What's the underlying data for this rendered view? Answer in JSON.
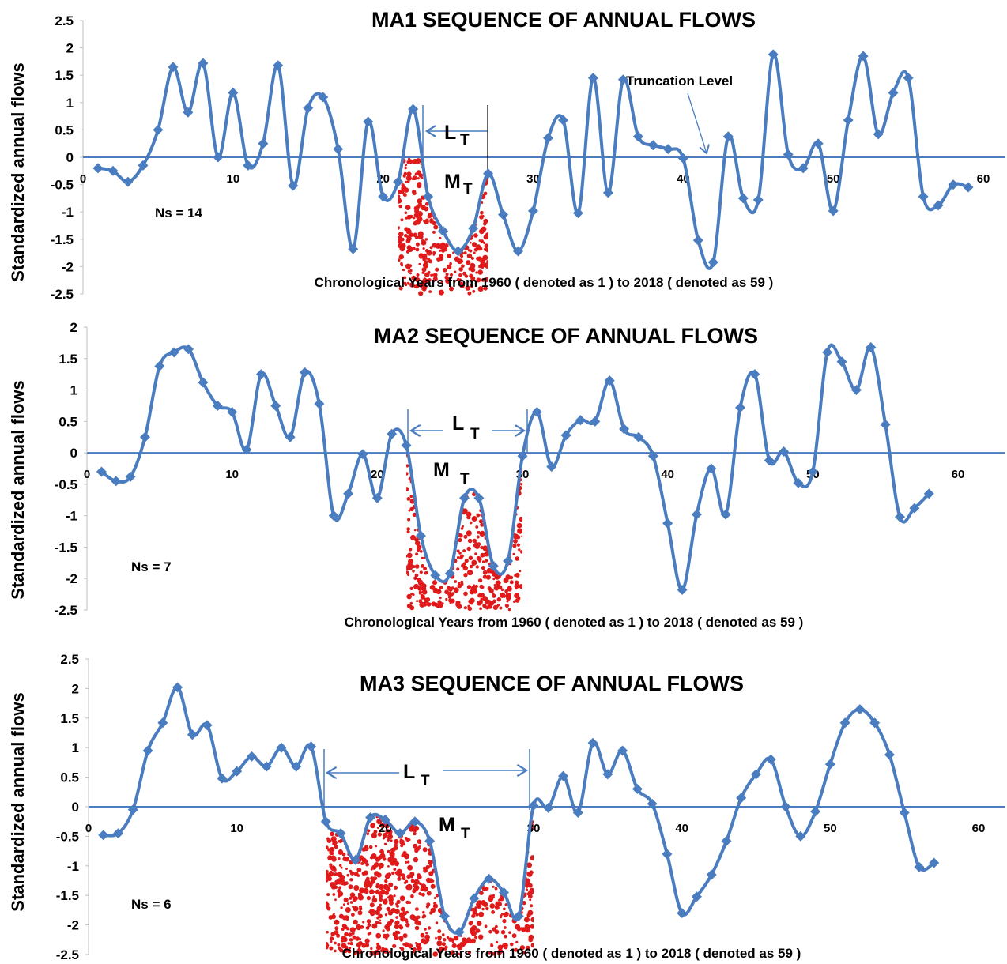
{
  "colors": {
    "line": "#4a7cc0",
    "axis": "#4a7cc0",
    "fill": "#e01a1a"
  },
  "chart_data": [
    {
      "type": "line",
      "title": "MA1  SEQUENCE  OF ANNUAL FLOWS",
      "ylabel": "Standardized annual flows",
      "xlabel": "Chronological Years from 1960 ( denoted as 1 ) to  2018 ( denoted as 59 )",
      "ylim": [
        -2.5,
        2.5
      ],
      "yticks": [
        "2.5",
        "2",
        "1.5",
        "1",
        "0.5",
        "0",
        "-0.5",
        "-1",
        "-1.5",
        "-2",
        "-2.5"
      ],
      "xlim": [
        0,
        62
      ],
      "xticks": [
        "0",
        "10",
        "20",
        "30",
        "40",
        "50",
        "60"
      ],
      "annotations": {
        "ns": "Ns = 14",
        "lt": "L",
        "mt": "M",
        "sub": "T",
        "truncation": "Truncation  Level"
      },
      "drought_years": [
        21,
        27
      ],
      "grid": false,
      "series": [
        {
          "x": [
            1,
            2,
            3,
            4,
            5,
            6,
            7,
            8,
            9,
            10,
            11,
            12,
            13,
            14,
            15,
            16,
            17,
            18,
            19,
            20,
            21,
            22,
            23,
            24,
            25,
            26,
            27,
            28,
            29,
            30,
            31,
            32,
            33,
            34,
            35,
            36,
            37,
            38,
            39,
            40,
            41,
            42,
            43,
            44,
            45,
            46,
            47,
            48,
            49,
            50,
            51,
            52,
            53,
            54,
            55,
            56,
            57,
            58,
            59
          ],
          "values": [
            -0.2,
            -0.25,
            -0.45,
            -0.15,
            0.5,
            1.65,
            0.82,
            1.72,
            0.0,
            1.18,
            -0.15,
            0.25,
            1.68,
            -0.52,
            0.9,
            1.1,
            0.15,
            -1.68,
            0.65,
            -0.72,
            -0.45,
            0.88,
            -0.72,
            -1.35,
            -1.72,
            -1.3,
            -0.3,
            -1.05,
            -1.72,
            -0.98,
            0.35,
            0.68,
            -1.02,
            1.45,
            -0.65,
            1.42,
            0.38,
            0.22,
            0.15,
            -0.02,
            -1.52,
            -1.92,
            0.38,
            -0.75,
            -0.78,
            1.88,
            0.05,
            -0.2,
            0.25,
            -0.98,
            0.68,
            1.85,
            0.42,
            1.18,
            1.45,
            -0.72,
            -0.88,
            -0.5,
            -0.55
          ]
        }
      ]
    },
    {
      "type": "line",
      "title": "MA2  SEQUENCE  OF ANNUAL FLOWS",
      "ylabel": "Standardized annual flows",
      "xlabel": "Chronological Years from 1960 ( denoted as 1 ) to  2018 ( denoted as 59 )",
      "ylim": [
        -2.5,
        2
      ],
      "yticks": [
        "2",
        "1.5",
        "1",
        "0.5",
        "0",
        "-0.5",
        "-1",
        "-1.5",
        "-2",
        "-2.5"
      ],
      "xlim": [
        0,
        62
      ],
      "xticks": [
        "0",
        "10",
        "20",
        "30",
        "40",
        "50",
        "60"
      ],
      "annotations": {
        "ns": "Ns = 7",
        "lt": "L",
        "mt": "M",
        "sub": "T"
      },
      "drought_years": [
        22,
        30
      ],
      "grid": false,
      "series": [
        {
          "x": [
            1,
            2,
            3,
            4,
            5,
            6,
            7,
            8,
            9,
            10,
            11,
            12,
            13,
            14,
            15,
            16,
            17,
            18,
            19,
            20,
            21,
            22,
            23,
            24,
            25,
            26,
            27,
            28,
            29,
            30,
            31,
            32,
            33,
            34,
            35,
            36,
            37,
            38,
            39,
            40,
            41,
            42,
            43,
            44,
            45,
            46,
            47,
            48,
            49,
            50,
            51,
            52,
            53,
            54,
            55,
            56,
            57,
            58
          ],
          "values": [
            -0.3,
            -0.45,
            -0.38,
            0.25,
            1.38,
            1.6,
            1.65,
            1.12,
            0.75,
            0.65,
            0.05,
            1.25,
            0.75,
            0.25,
            1.28,
            0.78,
            -1.0,
            -0.65,
            -0.02,
            -0.72,
            0.3,
            0.12,
            -1.32,
            -1.95,
            -1.92,
            -0.72,
            -0.72,
            -1.8,
            -1.72,
            -0.05,
            0.65,
            -0.22,
            0.28,
            0.52,
            0.5,
            1.15,
            0.38,
            0.25,
            -0.05,
            -1.12,
            -2.18,
            -0.98,
            -0.25,
            -0.98,
            0.72,
            1.25,
            -0.12,
            0.02,
            -0.48,
            -0.3,
            1.6,
            1.45,
            1.0,
            1.68,
            0.45,
            -1.02,
            -0.88,
            -0.65
          ]
        }
      ]
    },
    {
      "type": "line",
      "title": "MA3  SEQUENCE  OF ANNUAL FLOWS",
      "ylabel": "Standardized annual flows",
      "xlabel": "Chronological Years from 1960 ( denoted as 1 ) to  2018 ( denoted as 59 )",
      "ylim": [
        -2.5,
        2.5
      ],
      "yticks": [
        "2.5",
        "2",
        "1.5",
        "1",
        "0.5",
        "0",
        "-0.5",
        "-1",
        "-1.5",
        "-2",
        "-2.5"
      ],
      "xlim": [
        0,
        62
      ],
      "xticks": [
        "0",
        "10",
        "20",
        "30",
        "40",
        "50",
        "60"
      ],
      "annotations": {
        "ns": "Ns = 6",
        "lt": "L",
        "mt": "M",
        "sub": "T"
      },
      "drought_years": [
        16,
        30
      ],
      "grid": false,
      "series": [
        {
          "x": [
            1,
            2,
            3,
            4,
            5,
            6,
            7,
            8,
            9,
            10,
            11,
            12,
            13,
            14,
            15,
            16,
            17,
            18,
            19,
            20,
            21,
            22,
            23,
            24,
            25,
            26,
            27,
            28,
            29,
            30,
            31,
            32,
            33,
            34,
            35,
            36,
            37,
            38,
            39,
            40,
            41,
            42,
            43,
            44,
            45,
            46,
            47,
            48,
            49,
            50,
            51,
            52,
            53,
            54,
            55,
            56,
            57
          ],
          "values": [
            -0.48,
            -0.45,
            -0.05,
            0.95,
            1.42,
            2.02,
            1.22,
            1.38,
            0.48,
            0.6,
            0.85,
            0.68,
            1.0,
            0.68,
            1.02,
            -0.25,
            -0.45,
            -0.9,
            -0.18,
            -0.22,
            -0.45,
            -0.25,
            -0.58,
            -1.85,
            -2.12,
            -1.55,
            -1.22,
            -1.45,
            -1.85,
            0.02,
            -0.02,
            0.52,
            -0.1,
            1.08,
            0.55,
            0.95,
            0.3,
            0.05,
            -0.8,
            -1.8,
            -1.52,
            -1.15,
            -0.58,
            0.15,
            0.55,
            0.8,
            0.0,
            -0.5,
            -0.08,
            0.72,
            1.42,
            1.65,
            1.42,
            0.88,
            -0.1,
            -1.02,
            -0.95
          ]
        }
      ]
    }
  ]
}
